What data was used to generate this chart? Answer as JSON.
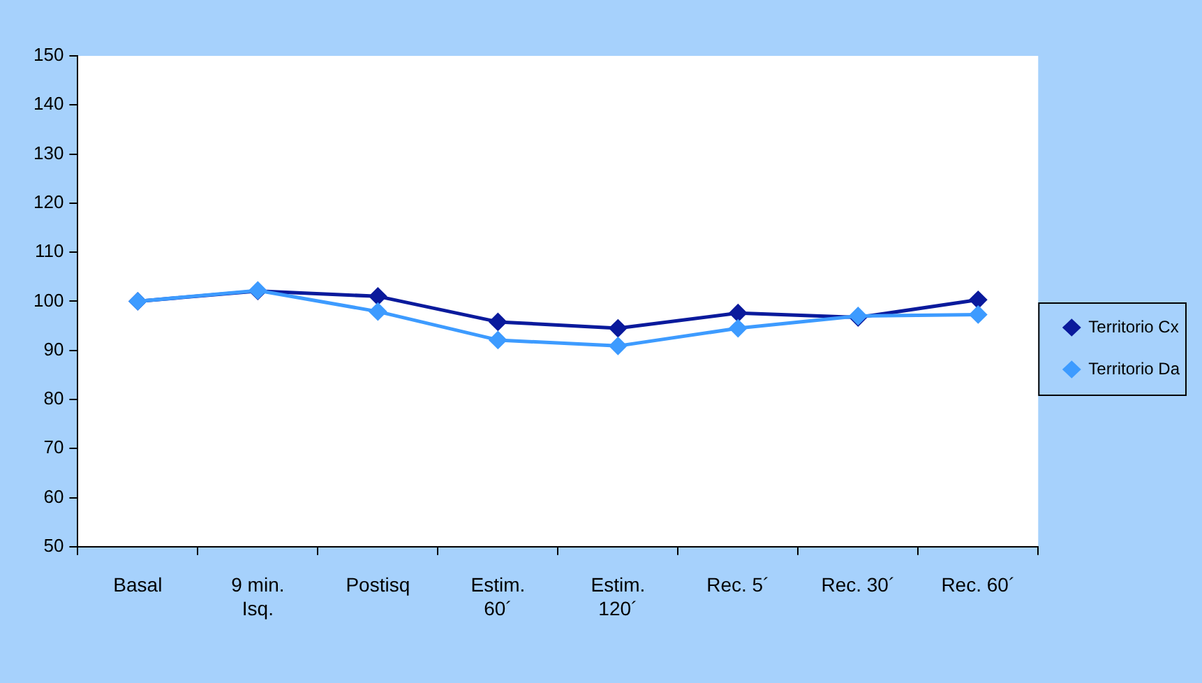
{
  "chart_data": {
    "type": "line",
    "categories": [
      "Basal",
      "9 min. Isq.",
      "Postisq",
      "Estim. 60´",
      "Estim. 120´",
      "Rec. 5´",
      "Rec. 30´",
      "Rec. 60´"
    ],
    "series": [
      {
        "name": "Territorio Cx",
        "color": "#0a1a9c",
        "values": [
          100,
          102.1,
          101,
          95.8,
          94.5,
          97.6,
          96.7,
          100.3
        ]
      },
      {
        "name": "Territorio Da",
        "color": "#3d9bff",
        "values": [
          100,
          102.2,
          97.9,
          92.1,
          90.9,
          94.5,
          97,
          97.3
        ]
      }
    ],
    "ylim": [
      50,
      150
    ],
    "yticks": [
      50,
      60,
      70,
      80,
      90,
      100,
      110,
      120,
      130,
      140,
      150
    ],
    "grid": false,
    "legend": "right",
    "marker": "diamond",
    "line_style": "solid"
  }
}
